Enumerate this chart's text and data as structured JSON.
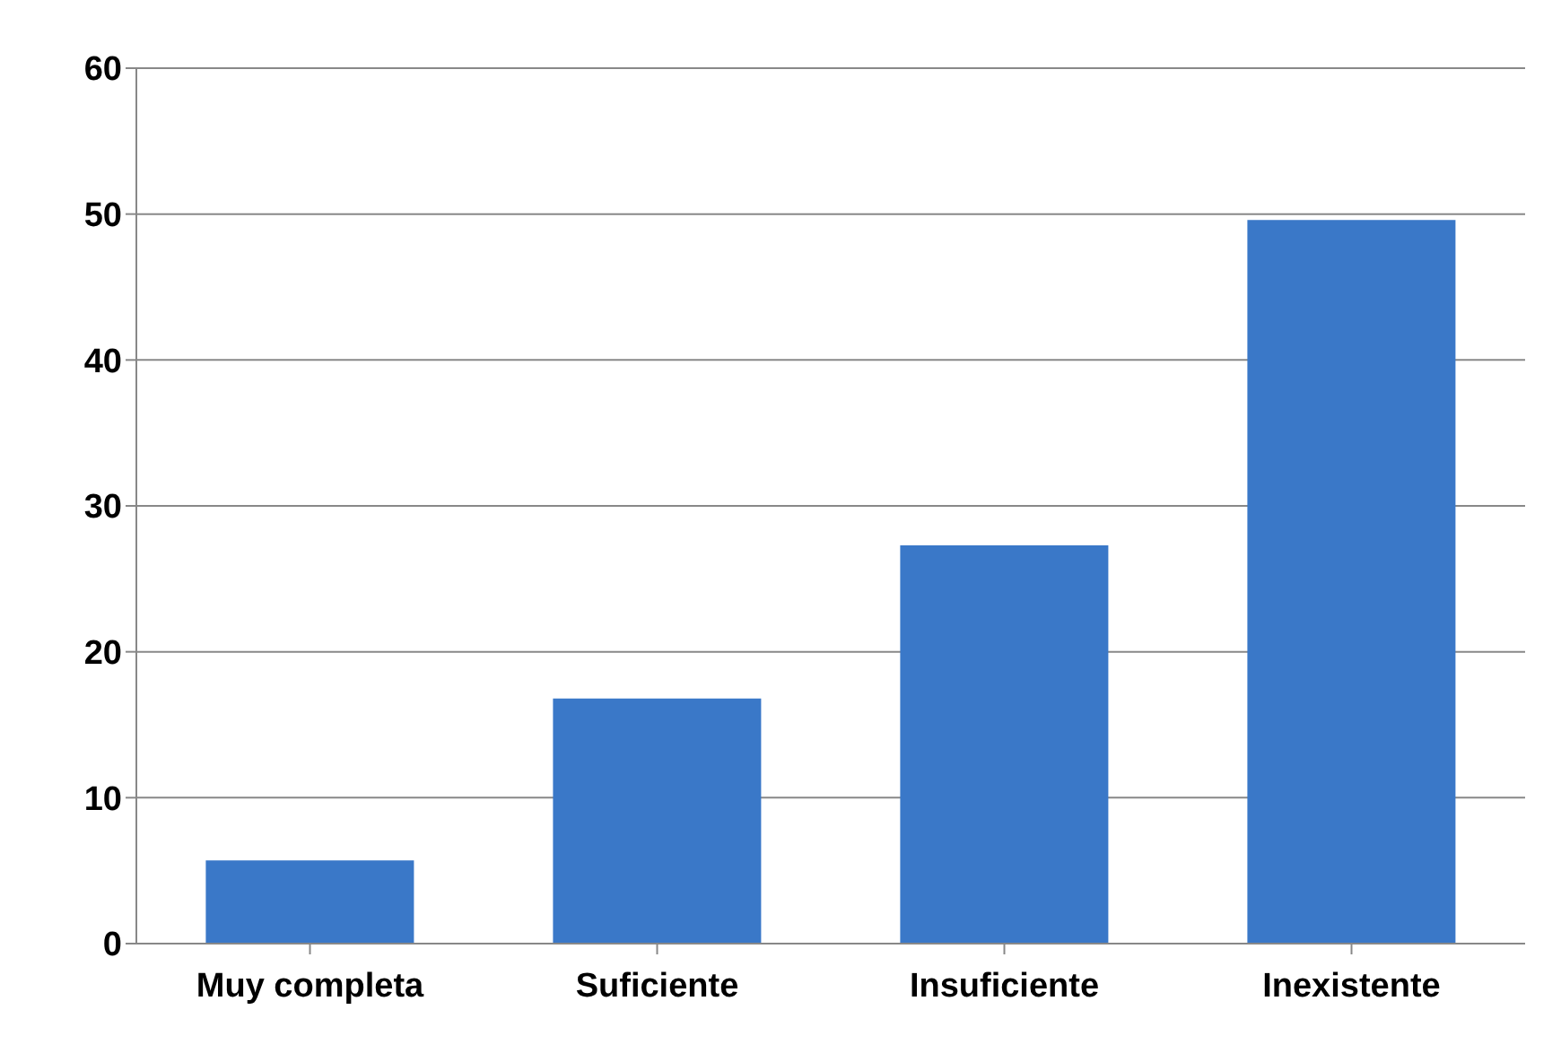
{
  "chart_data": {
    "type": "bar",
    "categories": [
      "Muy completa",
      "Suficiente",
      "Insuficiente",
      "Inexistente"
    ],
    "values": [
      5.7,
      16.8,
      27.3,
      49.6
    ],
    "color": "#3a78c8",
    "ylim": [
      0,
      60
    ],
    "yticks": [
      0,
      10,
      20,
      30,
      40,
      50,
      60
    ],
    "grid": "y"
  }
}
